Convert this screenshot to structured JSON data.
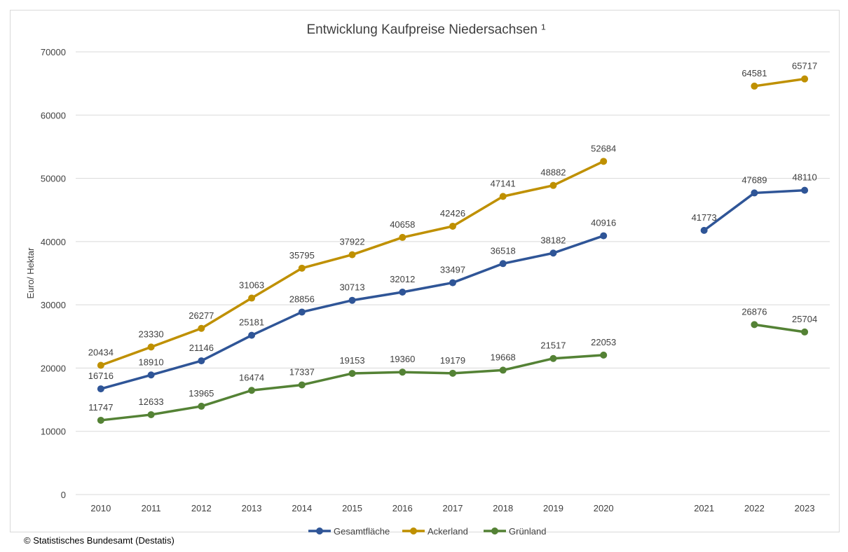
{
  "chart_data": {
    "type": "line",
    "title": "Entwicklung Kaufpreise Niedersachsen ¹",
    "xlabel": "",
    "ylabel": "Euro/ Hektar",
    "categories": [
      "2010",
      "2011",
      "2012",
      "2013",
      "2014",
      "2015",
      "2016",
      "2017",
      "2018",
      "2019",
      "2020",
      "",
      "2021",
      "2022",
      "2023"
    ],
    "ylim": [
      0,
      70000
    ],
    "yticks": [
      "0",
      "10000",
      "20000",
      "30000",
      "40000",
      "50000",
      "60000",
      "70000"
    ],
    "grid": true,
    "legend_position": "bottom",
    "series": [
      {
        "name": "Gesamtfläche",
        "color": "#2f5597",
        "values": [
          16716,
          18910,
          21146,
          25181,
          28856,
          30713,
          32012,
          33497,
          36518,
          38182,
          40916,
          null,
          41773,
          47689,
          48110
        ],
        "labels": [
          "16716",
          "18910",
          "21146",
          "25181",
          "28856",
          "30713",
          "32012",
          "33497",
          "36518",
          "38182",
          "40916",
          "",
          "41773",
          "47689",
          "48110"
        ]
      },
      {
        "name": "Ackerland",
        "color": "#bf9000",
        "values": [
          20434,
          23330,
          26277,
          31063,
          35795,
          37922,
          40658,
          42426,
          47141,
          48882,
          52684,
          null,
          null,
          64581,
          65717
        ],
        "labels": [
          "20434",
          "23330",
          "26277",
          "31063",
          "35795",
          "37922",
          "40658",
          "42426",
          "47141",
          "48882",
          "52684",
          "",
          "",
          "64581",
          "65717"
        ]
      },
      {
        "name": "Grünland",
        "color": "#548235",
        "values": [
          11747,
          12633,
          13965,
          16474,
          17337,
          19153,
          19360,
          19179,
          19668,
          21517,
          22053,
          null,
          null,
          26876,
          25704
        ],
        "labels": [
          "11747",
          "12633",
          "13965",
          "16474",
          "17337",
          "19153",
          "19360",
          "19179",
          "19668",
          "21517",
          "22053",
          "",
          "",
          "26876",
          "25704"
        ]
      }
    ]
  },
  "footer": {
    "credit": "© Statistisches Bundesamt (Destatis)"
  }
}
